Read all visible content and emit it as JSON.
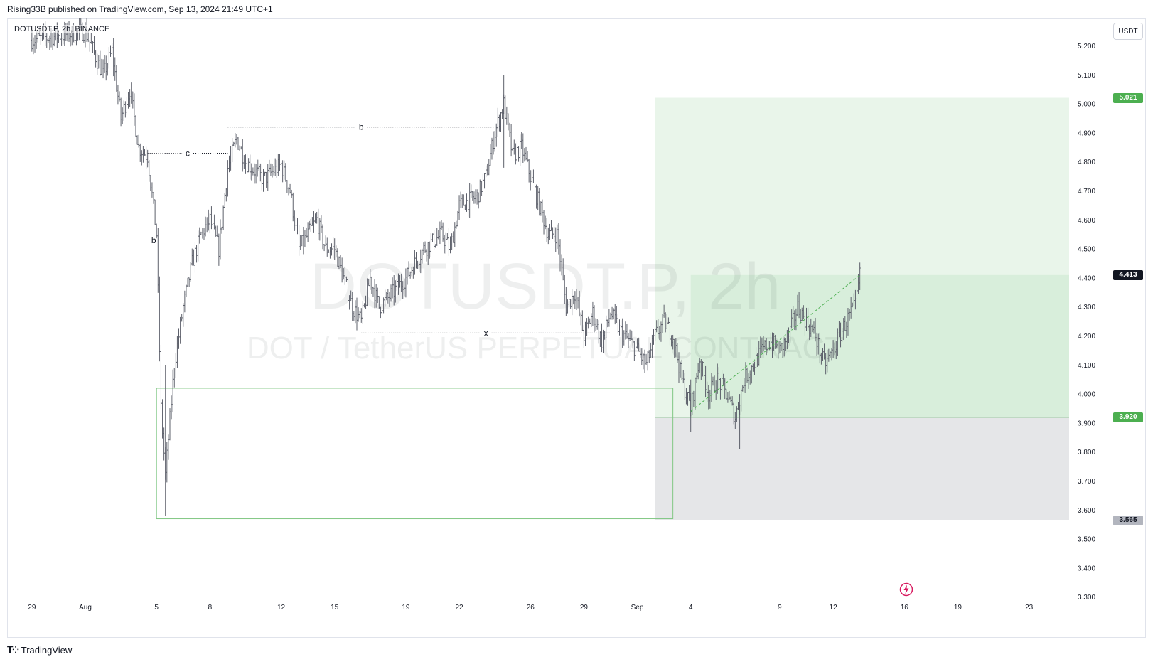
{
  "header": {
    "published_text": "Rising33B published on TradingView.com, Sep 13, 2024 21:49 UTC+1"
  },
  "symbol": {
    "label": "DOTUSDT.P, 2h, BINANCE",
    "watermark_symbol": "DOTUSDT.P, 2h",
    "watermark_description": "DOT / TetherUS PERPETUAL CONTRACT"
  },
  "currency_button": "USDT",
  "footer": {
    "brand": "TradingView",
    "logo": "tradingview-logo-icon"
  },
  "colors": {
    "candle": "#5d606b",
    "target_zone": "#e9f5ea",
    "target_zone_inner": "#d8eedb",
    "stop_zone": "#e5e6e8",
    "entry_line": "#4caf50",
    "target_tag": "#4caf50",
    "current_tag": "#131722",
    "stop_tag": "#b2b5be",
    "alert_icon": "#d81b60"
  },
  "chart_data": {
    "type": "candlestick",
    "timeframe": "2h",
    "y_axis": {
      "ticks": [
        "5.200",
        "5.100",
        "5.000",
        "4.900",
        "4.800",
        "4.700",
        "4.600",
        "4.500",
        "4.400",
        "4.300",
        "4.200",
        "4.100",
        "4.000",
        "3.900",
        "3.800",
        "3.700",
        "3.600",
        "3.500",
        "3.400",
        "3.300"
      ],
      "ylim": [
        3.3,
        5.25
      ],
      "unit": "USDT"
    },
    "x_axis": {
      "ticks": [
        "29",
        "Aug",
        "5",
        "8",
        "12",
        "15",
        "19",
        "22",
        "26",
        "29",
        "Sep",
        "4",
        "9",
        "12",
        "16",
        "19",
        "23"
      ],
      "tick_dates": [
        "2024-07-29",
        "2024-08-01",
        "2024-08-05",
        "2024-08-08",
        "2024-08-12",
        "2024-08-15",
        "2024-08-19",
        "2024-08-22",
        "2024-08-26",
        "2024-08-29",
        "2024-09-01",
        "2024-09-04",
        "2024-09-09",
        "2024-09-12",
        "2024-09-16",
        "2024-09-19",
        "2024-09-23"
      ]
    },
    "price_path": [
      [
        "2024-08-01",
        5.25
      ],
      [
        "2024-08-02",
        5.1
      ],
      [
        "2024-08-02T12",
        5.18
      ],
      [
        "2024-08-03",
        4.95
      ],
      [
        "2024-08-03T12",
        5.05
      ],
      [
        "2024-08-04",
        4.85
      ],
      [
        "2024-08-04T12",
        4.82
      ],
      [
        "2024-08-05",
        4.55
      ],
      [
        "2024-08-05T06",
        3.95
      ],
      [
        "2024-08-05T12",
        3.72
      ],
      [
        "2024-08-06",
        4.1
      ],
      [
        "2024-08-06T12",
        4.3
      ],
      [
        "2024-08-07",
        4.45
      ],
      [
        "2024-08-07T12",
        4.55
      ],
      [
        "2024-08-08",
        4.6
      ],
      [
        "2024-08-08T12",
        4.5
      ],
      [
        "2024-08-09",
        4.78
      ],
      [
        "2024-08-09T12",
        4.88
      ],
      [
        "2024-08-10",
        4.8
      ],
      [
        "2024-08-11",
        4.74
      ],
      [
        "2024-08-12",
        4.79
      ],
      [
        "2024-08-12T12",
        4.7
      ],
      [
        "2024-08-13",
        4.5
      ],
      [
        "2024-08-14",
        4.6
      ],
      [
        "2024-08-14T12",
        4.5
      ],
      [
        "2024-08-15",
        4.5
      ],
      [
        "2024-08-15T12",
        4.4
      ],
      [
        "2024-08-16",
        4.3
      ],
      [
        "2024-08-16T12",
        4.25
      ],
      [
        "2024-08-17",
        4.4
      ],
      [
        "2024-08-17T12",
        4.3
      ],
      [
        "2024-08-18",
        4.33
      ],
      [
        "2024-08-19",
        4.4
      ],
      [
        "2024-08-19T12",
        4.45
      ],
      [
        "2024-08-20",
        4.5
      ],
      [
        "2024-08-21",
        4.55
      ],
      [
        "2024-08-21T12",
        4.5
      ],
      [
        "2024-08-22",
        4.65
      ],
      [
        "2024-08-23",
        4.68
      ],
      [
        "2024-08-23T12",
        4.75
      ],
      [
        "2024-08-24",
        4.9
      ],
      [
        "2024-08-24T12",
        5.0
      ],
      [
        "2024-08-25",
        4.82
      ],
      [
        "2024-08-25T12",
        4.85
      ],
      [
        "2024-08-26",
        4.75
      ],
      [
        "2024-08-26T12",
        4.65
      ],
      [
        "2024-08-27",
        4.55
      ],
      [
        "2024-08-27T12",
        4.55
      ],
      [
        "2024-08-28",
        4.3
      ],
      [
        "2024-08-28T12",
        4.35
      ],
      [
        "2024-08-29",
        4.2
      ],
      [
        "2024-08-29T12",
        4.28
      ],
      [
        "2024-08-30",
        4.18
      ],
      [
        "2024-08-30T12",
        4.28
      ],
      [
        "2024-08-31",
        4.22
      ],
      [
        "2024-09-01",
        4.15
      ],
      [
        "2024-09-01T12",
        4.1
      ],
      [
        "2024-09-02",
        4.2
      ],
      [
        "2024-09-02T12",
        4.25
      ],
      [
        "2024-09-03",
        4.2
      ],
      [
        "2024-09-03T12",
        4.05
      ],
      [
        "2024-09-04",
        3.95
      ],
      [
        "2024-09-04T12",
        4.12
      ],
      [
        "2024-09-05",
        4.0
      ],
      [
        "2024-09-05T12",
        4.05
      ],
      [
        "2024-09-06",
        4.0
      ],
      [
        "2024-09-06T12",
        3.92
      ],
      [
        "2024-09-07",
        4.05
      ],
      [
        "2024-09-07T12",
        4.1
      ],
      [
        "2024-09-08",
        4.15
      ],
      [
        "2024-09-08T12",
        4.18
      ],
      [
        "2024-09-09",
        4.15
      ],
      [
        "2024-09-09T12",
        4.2
      ],
      [
        "2024-09-10",
        4.3
      ],
      [
        "2024-09-10T12",
        4.25
      ],
      [
        "2024-09-11",
        4.2
      ],
      [
        "2024-09-11T12",
        4.1
      ],
      [
        "2024-09-12",
        4.15
      ],
      [
        "2024-09-12T12",
        4.22
      ],
      [
        "2024-09-13",
        4.28
      ],
      [
        "2024-09-13T06",
        4.3
      ],
      [
        "2024-09-13T12",
        4.41
      ]
    ],
    "labels": [
      {
        "text": "c"
      },
      {
        "text": "b"
      },
      {
        "text": "x"
      },
      {
        "text": "b"
      }
    ],
    "price_tags": {
      "target": "5.021",
      "current": "4.413",
      "entry": "3.920",
      "stop": "3.565"
    },
    "position_tool": {
      "side": "long",
      "target": 5.021,
      "entry": 3.92,
      "stop": 3.565,
      "start": "2024-09-02",
      "end": "2024-09-26"
    },
    "zone_rectangle": {
      "top": 4.02,
      "bottom": 3.57,
      "start": "2024-08-05",
      "end": "2024-09-03"
    },
    "pattern_levels": [
      {
        "label": "c",
        "price": 4.83,
        "from": "2024-08-04T12",
        "to": "2024-08-09"
      },
      {
        "label": "b",
        "price": 4.92,
        "from": "2024-08-09",
        "to": "2024-08-24"
      },
      {
        "label": "x",
        "price": 4.21,
        "from": "2024-08-16T12",
        "to": "2024-08-30T12"
      },
      {
        "label": "b",
        "price": 4.53
      }
    ],
    "trend_line": {
      "from": [
        "2024-09-04",
        3.94
      ],
      "to": [
        "2024-09-13T12",
        4.41
      ],
      "style": "dashed"
    }
  }
}
